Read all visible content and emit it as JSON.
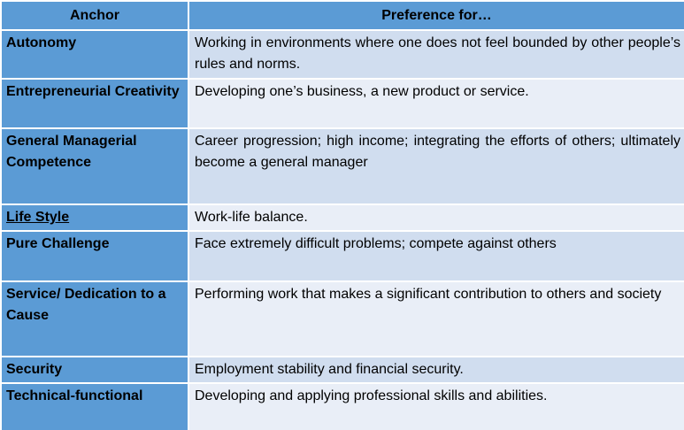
{
  "header": {
    "col_anchor": "Anchor",
    "col_preference": "Preference for…"
  },
  "rows": [
    {
      "anchor": "Autonomy",
      "preference": "Working in environments where one does not feel bounded by other people’s rules and norms."
    },
    {
      "anchor": "Entrepreneurial Creativity",
      "preference": "Developing one’s business, a new product or service."
    },
    {
      "anchor": "General Managerial Competence",
      "preference": "Career progression; high income; integrating the efforts of others; ultimately become a general manager"
    },
    {
      "anchor": "Life Style",
      "preference": "Work-life balance."
    },
    {
      "anchor": "Pure Challenge",
      "preference": "Face extremely difficult problems; compete against others"
    },
    {
      "anchor": "Service/ Dedication to a Cause",
      "preference": "Performing work that makes a significant contribution to others and society"
    },
    {
      "anchor": "Security",
      "preference": "Employment stability and financial  security."
    },
    {
      "anchor": "Technical-functional",
      "preference": "Developing and applying professional skills and abilities."
    }
  ],
  "colors": {
    "header_bg": "#5b9bd5",
    "anchor_bg": "#5b9bd5",
    "row_band_dark": "#d0ddef",
    "row_band_light": "#e9eef7"
  }
}
